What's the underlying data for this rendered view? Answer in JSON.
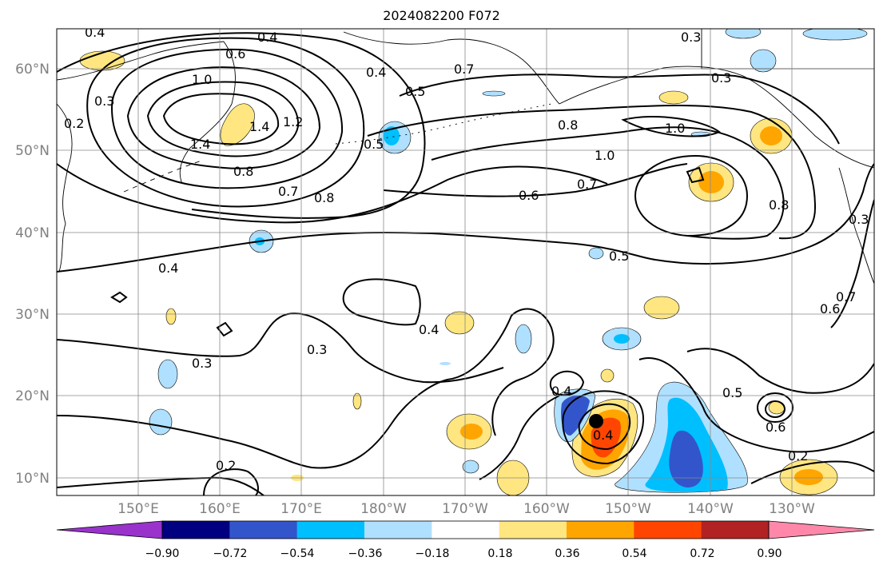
{
  "title": "2024082200 F072",
  "map": {
    "lat_labels": [
      "60°N",
      "50°N",
      "40°N",
      "30°N",
      "20°N",
      "10°N"
    ],
    "lon_labels": [
      "150°E",
      "160°E",
      "170°E",
      "180°W",
      "170°W",
      "160°W",
      "150°W",
      "140°W",
      "130°W"
    ],
    "contour_labels": [
      "0.4",
      "0.4",
      "0.6",
      "0.3",
      "0.7",
      "0.3",
      "0.3",
      "0.4",
      "0.5",
      "0.2",
      "1.0",
      "1.4",
      "1.4",
      "1.2",
      "0.5",
      "0.8",
      "1.0",
      "1.0",
      "0.8",
      "0.7",
      "0.8",
      "0.6",
      "0.7",
      "0.8",
      "0.3",
      "0.4",
      "0.5",
      "0.6",
      "0.7",
      "0.3",
      "0.3",
      "0.4",
      "0.4",
      "0.4",
      "0.5",
      "0.6",
      "0.2",
      "0.2"
    ],
    "storm_marker": "black-circle"
  },
  "colorbar": {
    "colors": [
      "#9933cc",
      "#000080",
      "#3355cc",
      "#00bfff",
      "#b0e0ff",
      "#ffffff",
      "#ffe680",
      "#ffa500",
      "#ff4500",
      "#b22222",
      "#ff88aa"
    ],
    "tick_labels": [
      "−0.90",
      "−0.72",
      "−0.54",
      "−0.36",
      "−0.18",
      "0.18",
      "0.36",
      "0.54",
      "0.72",
      "0.90"
    ]
  }
}
